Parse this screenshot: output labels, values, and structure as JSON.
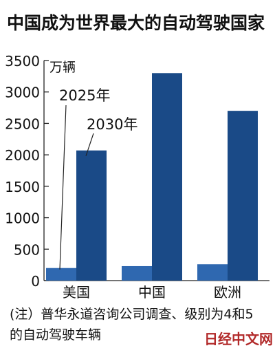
{
  "title": "中国成为世界最大的自动驾驶国家",
  "note_line1": "(注）普华永道咨询公司调查、级别为4和5",
  "note_line2": "的自动驾驶车辆",
  "watermark": "日经中文网",
  "colors": {
    "series_2025": "#2f68b0",
    "series_2030": "#1a4a87"
  },
  "chart_data": {
    "type": "bar",
    "title": "中国成为世界最大的自动驾驶国家",
    "ylabel": "万辆",
    "categories": [
      "美国",
      "中国",
      "欧洲"
    ],
    "series": [
      {
        "name": "2025年",
        "values": [
          200,
          230,
          260
        ]
      },
      {
        "name": "2030年",
        "values": [
          2070,
          3300,
          2700
        ]
      }
    ],
    "ylim": [
      0,
      3500
    ],
    "yticks": [
      0,
      500,
      1000,
      1500,
      2000,
      2500,
      3000,
      3500
    ],
    "grid": false,
    "legend": "annotations with leader lines"
  }
}
